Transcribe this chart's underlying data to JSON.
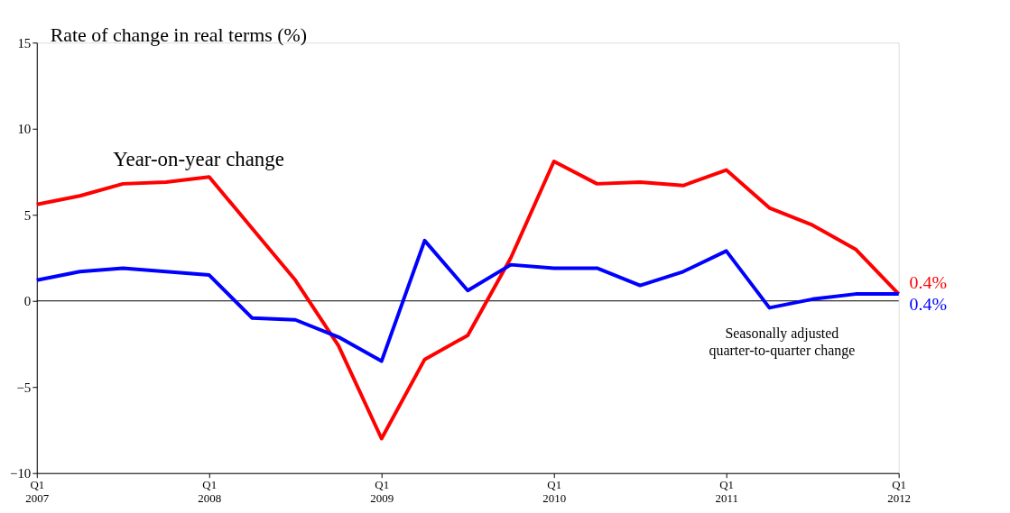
{
  "chart_data": {
    "type": "line",
    "ylabel": "Rate of change in real terms (%)",
    "categories": [
      "Q1 2007",
      null,
      null,
      null,
      "Q1 2008",
      null,
      null,
      null,
      "Q1 2009",
      null,
      null,
      null,
      "Q1 2010",
      null,
      null,
      null,
      "Q1 2011",
      null,
      null,
      null,
      "Q1 2012"
    ],
    "series": [
      {
        "name": "Year-on-year change",
        "color": "#ff0000",
        "values": [
          5.6,
          6.1,
          6.8,
          6.9,
          7.2,
          4.2,
          1.2,
          -2.6,
          -8.0,
          -3.4,
          -2.0,
          2.5,
          8.1,
          6.8,
          6.9,
          6.7,
          7.6,
          5.4,
          4.4,
          3.0,
          0.4
        ],
        "value_labels": [
          null,
          null,
          null,
          null,
          null,
          null,
          null,
          null,
          null,
          null,
          null,
          null,
          null,
          null,
          null,
          null,
          null,
          null,
          null,
          null,
          "0.4%"
        ]
      },
      {
        "name": "Seasonally adjusted quarter-to-quarter change",
        "color": "#0000ff",
        "values": [
          1.2,
          1.7,
          1.9,
          1.7,
          1.5,
          -1.0,
          -1.1,
          -2.1,
          -3.5,
          3.5,
          0.6,
          2.1,
          1.9,
          1.9,
          0.9,
          1.7,
          2.9,
          -0.4,
          0.1,
          0.4,
          0.4
        ],
        "value_labels": [
          null,
          null,
          null,
          null,
          null,
          null,
          null,
          null,
          null,
          null,
          null,
          null,
          null,
          null,
          null,
          null,
          null,
          null,
          null,
          null,
          "0.4%"
        ]
      }
    ],
    "ylim": [
      -10,
      15
    ],
    "yticks": [
      -10,
      -5,
      0,
      5,
      10,
      15
    ],
    "ref_lines": [
      {
        "axis": "y",
        "value": 0,
        "color": "#000000",
        "line_style": "solid"
      }
    ],
    "grid": false,
    "marker": "none",
    "line_style": "solid"
  }
}
